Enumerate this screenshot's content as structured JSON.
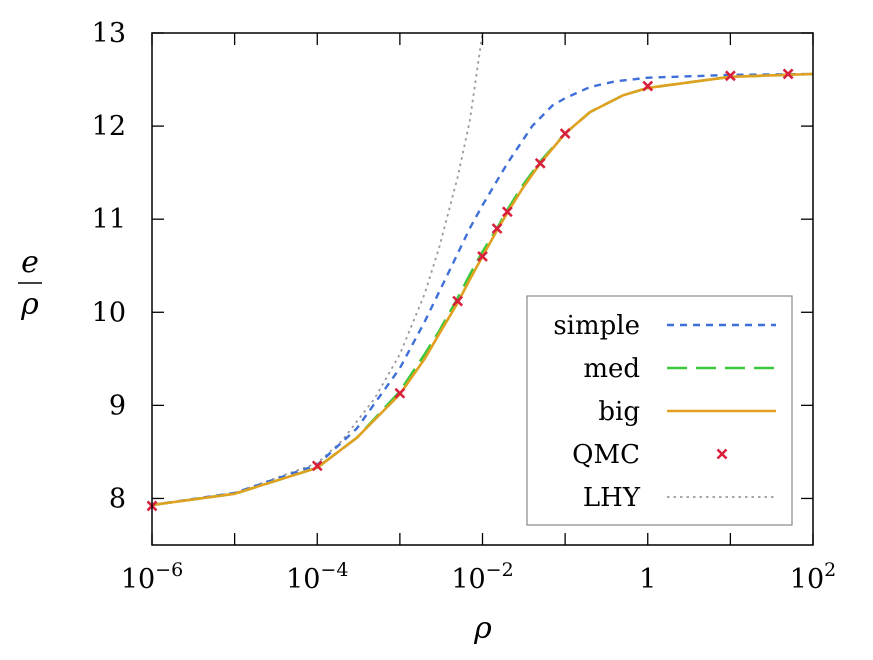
{
  "chart_data": {
    "type": "line",
    "title": "",
    "xlabel": "ρ",
    "ylabel": {
      "numerator": "e",
      "denominator": "ρ"
    },
    "x_scale": "log",
    "xlim": [
      1e-06,
      100
    ],
    "ylim": [
      7.5,
      13
    ],
    "grid": false,
    "legend_position": "bottom-right",
    "x_ticks": [
      {
        "value": 1e-06,
        "base": "10",
        "exp": "−6"
      },
      {
        "value": 0.0001,
        "base": "10",
        "exp": "−4"
      },
      {
        "value": 0.01,
        "base": "10",
        "exp": "−2"
      },
      {
        "value": 1,
        "base": "1",
        "exp": ""
      },
      {
        "value": 100,
        "base": "10",
        "exp": "2"
      }
    ],
    "y_ticks": [
      8,
      9,
      10,
      11,
      12,
      13
    ],
    "series": [
      {
        "name": "simple",
        "style": "short-dash",
        "color": "#3f6fd8",
        "x": [
          1e-06,
          1e-05,
          0.0001,
          0.0003,
          0.001,
          0.002,
          0.004,
          0.007,
          0.01,
          0.02,
          0.04,
          0.07,
          0.1,
          0.2,
          0.4,
          1,
          10,
          100
        ],
        "y": [
          7.93,
          8.06,
          8.36,
          8.75,
          9.4,
          9.9,
          10.45,
          10.9,
          11.15,
          11.6,
          12.0,
          12.22,
          12.3,
          12.42,
          12.48,
          12.52,
          12.55,
          12.56
        ]
      },
      {
        "name": "med",
        "style": "long-dash",
        "color": "#3cc83c",
        "x": [
          1e-06,
          1e-05,
          0.0001,
          0.0003,
          0.001,
          0.002,
          0.003,
          0.005,
          0.007,
          0.01,
          0.015,
          0.02,
          0.03,
          0.05,
          0.1,
          0.2,
          0.5,
          1,
          10,
          100
        ],
        "y": [
          7.93,
          8.05,
          8.33,
          8.65,
          9.15,
          9.55,
          9.8,
          10.15,
          10.4,
          10.65,
          10.9,
          11.1,
          11.35,
          11.62,
          11.92,
          12.15,
          12.33,
          12.41,
          12.53,
          12.56
        ]
      },
      {
        "name": "big",
        "style": "solid",
        "color": "#e0a020",
        "x": [
          1e-06,
          1e-05,
          0.0001,
          0.0003,
          0.001,
          0.002,
          0.003,
          0.005,
          0.007,
          0.01,
          0.015,
          0.02,
          0.03,
          0.05,
          0.1,
          0.2,
          0.5,
          1,
          10,
          100
        ],
        "y": [
          7.93,
          8.05,
          8.33,
          8.65,
          9.12,
          9.5,
          9.77,
          10.1,
          10.35,
          10.6,
          10.88,
          11.07,
          11.32,
          11.6,
          11.92,
          12.15,
          12.33,
          12.41,
          12.53,
          12.56
        ]
      },
      {
        "name": "QMC",
        "style": "markers",
        "color": "#d8203c",
        "x": [
          1e-06,
          0.0001,
          0.001,
          0.005,
          0.01,
          0.015,
          0.02,
          0.05,
          0.1,
          1,
          10,
          50
        ],
        "y": [
          7.92,
          8.35,
          9.13,
          10.12,
          10.6,
          10.9,
          11.08,
          11.6,
          11.92,
          12.43,
          12.54,
          12.56
        ]
      },
      {
        "name": "LHY",
        "style": "dotted",
        "color": "#999999",
        "x": [
          1e-06,
          1e-05,
          0.0001,
          0.0002,
          0.0005,
          0.001,
          0.002,
          0.003,
          0.005,
          0.007,
          0.01
        ],
        "y": [
          7.93,
          8.06,
          8.38,
          8.62,
          9.08,
          9.55,
          10.2,
          10.7,
          11.45,
          12.05,
          13.0
        ]
      }
    ]
  }
}
